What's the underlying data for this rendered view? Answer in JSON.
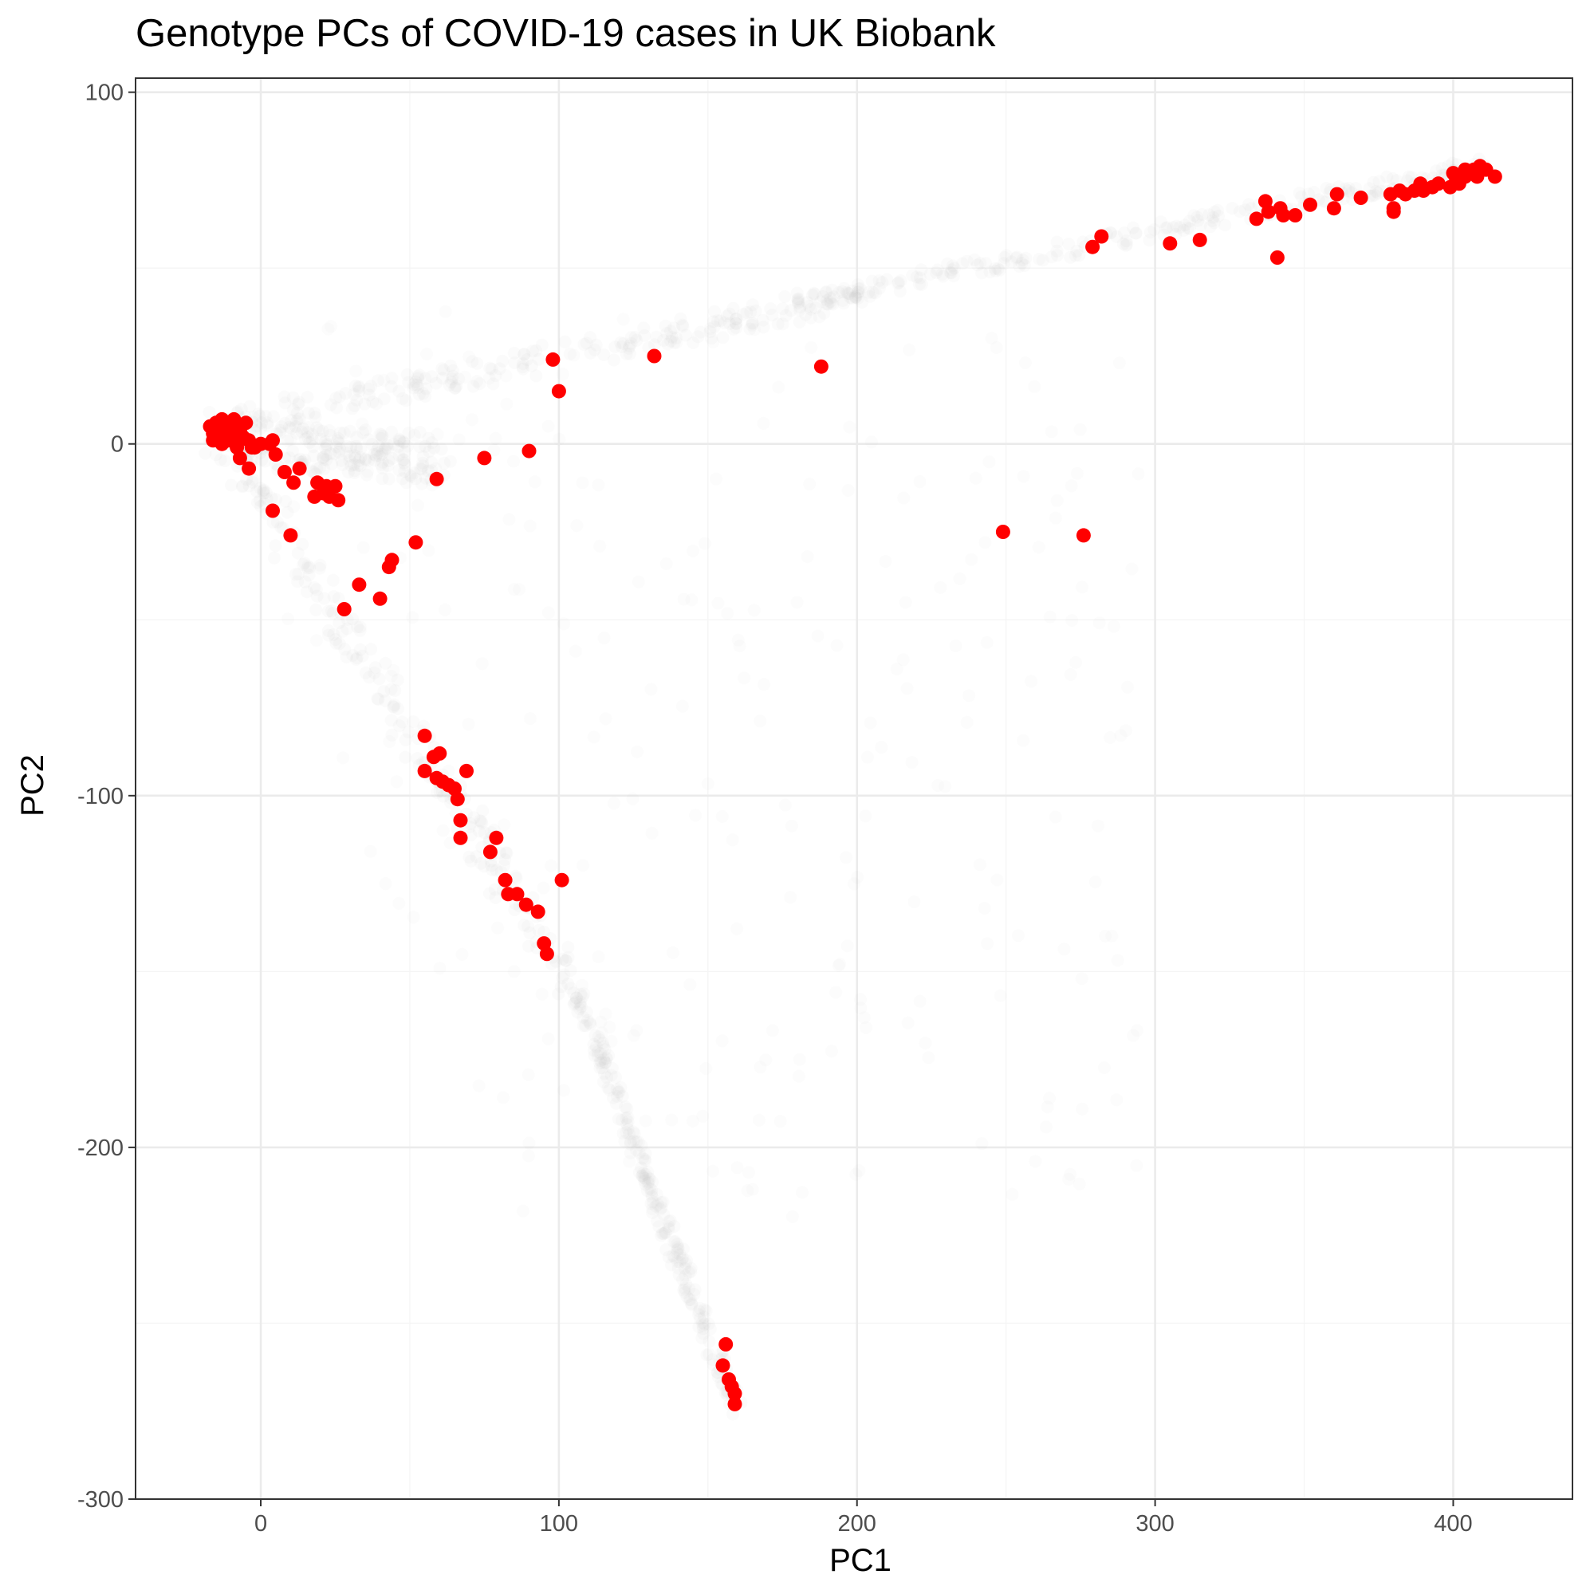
{
  "colors": {
    "background": "#ffffff",
    "grid_major": "#ebebeb",
    "grid_minor": "#f5f5f5",
    "panel_border": "#333333",
    "tick_text": "#4d4d4d",
    "control_points": "#bebebe",
    "case_points": "#ff0000"
  },
  "chart_data": {
    "type": "scatter",
    "title": "Genotype PCs of COVID-19 cases in UK Biobank",
    "xlabel": "PC1",
    "ylabel": "PC2",
    "xlim": [
      -42,
      440
    ],
    "ylim": [
      -300,
      104
    ],
    "x_ticks": [
      0,
      100,
      200,
      300,
      400
    ],
    "x_tick_labels": [
      "0",
      "100",
      "200",
      "300",
      "400"
    ],
    "y_ticks": [
      100,
      0,
      -100,
      -200,
      -300
    ],
    "y_tick_labels": [
      "100",
      "0",
      "-100",
      "-200",
      "-300"
    ],
    "grid": true,
    "legend": "none",
    "series": [
      {
        "role": "background",
        "color": "#bebebe",
        "opacity": 0.06,
        "shape": "band",
        "bands": [
          {
            "from": [
              -15,
              5
            ],
            "to": [
              200,
              42
            ],
            "width": 5
          },
          {
            "from": [
              180,
              40
            ],
            "to": [
              415,
              80
            ],
            "width": 3
          },
          {
            "from": [
              -12,
              2
            ],
            "to": [
              60,
              -5
            ],
            "width": 9
          },
          {
            "from": [
              -12,
              0
            ],
            "to": [
              105,
              -155
            ],
            "width": 6
          },
          {
            "from": [
              105,
              -155
            ],
            "to": [
              160,
              -275
            ],
            "width": 3
          }
        ]
      },
      {
        "role": "cases",
        "color": "#ff0000",
        "points": [
          [
            -17,
            5
          ],
          [
            -16,
            3
          ],
          [
            -15,
            6
          ],
          [
            -14,
            2
          ],
          [
            -13,
            7
          ],
          [
            -12,
            4
          ],
          [
            -11,
            1
          ],
          [
            -10,
            6
          ],
          [
            -9,
            3
          ],
          [
            -8,
            0
          ],
          [
            -14,
            4
          ],
          [
            -12,
            6
          ],
          [
            -10,
            2
          ],
          [
            -16,
            1
          ],
          [
            -13,
            0
          ],
          [
            -11,
            5
          ],
          [
            -7,
            4
          ],
          [
            -6,
            2
          ],
          [
            -5,
            6
          ],
          [
            -9,
            7
          ],
          [
            -8,
            -1
          ],
          [
            -4,
            1
          ],
          [
            -3,
            -1
          ],
          [
            0,
            0
          ],
          [
            -2,
            -1
          ],
          [
            3,
            0
          ],
          [
            4,
            1
          ],
          [
            -7,
            -4
          ],
          [
            -4,
            -7
          ],
          [
            5,
            -3
          ],
          [
            8,
            -8
          ],
          [
            11,
            -11
          ],
          [
            13,
            -7
          ],
          [
            18,
            -15
          ],
          [
            19,
            -11
          ],
          [
            21,
            -14
          ],
          [
            22,
            -12
          ],
          [
            23,
            -15
          ],
          [
            25,
            -12
          ],
          [
            26,
            -16
          ],
          [
            4,
            -19
          ],
          [
            10,
            -26
          ],
          [
            28,
            -47
          ],
          [
            33,
            -40
          ],
          [
            40,
            -44
          ],
          [
            43,
            -35
          ],
          [
            44,
            -33
          ],
          [
            52,
            -28
          ],
          [
            59,
            -10
          ],
          [
            75,
            -4
          ],
          [
            90,
            -2
          ],
          [
            98,
            24
          ],
          [
            100,
            15
          ],
          [
            132,
            25
          ],
          [
            188,
            22
          ],
          [
            249,
            -25
          ],
          [
            276,
            -26
          ],
          [
            55,
            -83
          ],
          [
            55,
            -93
          ],
          [
            58,
            -89
          ],
          [
            60,
            -88
          ],
          [
            59,
            -95
          ],
          [
            61,
            -96
          ],
          [
            63,
            -97
          ],
          [
            65,
            -98
          ],
          [
            66,
            -101
          ],
          [
            67,
            -107
          ],
          [
            67,
            -112
          ],
          [
            69,
            -93
          ],
          [
            77,
            -116
          ],
          [
            79,
            -112
          ],
          [
            82,
            -124
          ],
          [
            83,
            -128
          ],
          [
            86,
            -128
          ],
          [
            89,
            -131
          ],
          [
            93,
            -133
          ],
          [
            95,
            -142
          ],
          [
            96,
            -145
          ],
          [
            101,
            -124
          ],
          [
            155,
            -262
          ],
          [
            156,
            -256
          ],
          [
            157,
            -266
          ],
          [
            158,
            -268
          ],
          [
            159,
            -270
          ],
          [
            159,
            -273
          ],
          [
            279,
            56
          ],
          [
            282,
            59
          ],
          [
            305,
            57
          ],
          [
            315,
            58
          ],
          [
            334,
            64
          ],
          [
            337,
            69
          ],
          [
            338,
            66
          ],
          [
            341,
            53
          ],
          [
            342,
            67
          ],
          [
            343,
            65
          ],
          [
            347,
            65
          ],
          [
            352,
            68
          ],
          [
            360,
            67
          ],
          [
            361,
            71
          ],
          [
            369,
            70
          ],
          [
            379,
            71
          ],
          [
            380,
            67
          ],
          [
            380,
            66
          ],
          [
            382,
            72
          ],
          [
            384,
            71
          ],
          [
            387,
            72
          ],
          [
            389,
            74
          ],
          [
            390,
            72
          ],
          [
            393,
            73
          ],
          [
            395,
            74
          ],
          [
            399,
            73
          ],
          [
            400,
            77
          ],
          [
            401,
            75
          ],
          [
            402,
            74
          ],
          [
            404,
            76
          ],
          [
            404,
            78
          ],
          [
            405,
            77
          ],
          [
            407,
            78
          ],
          [
            408,
            76
          ],
          [
            409,
            79
          ],
          [
            410,
            78
          ],
          [
            411,
            78
          ],
          [
            414,
            76
          ]
        ]
      }
    ]
  }
}
